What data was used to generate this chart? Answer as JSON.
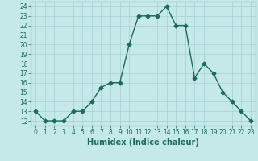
{
  "x": [
    0,
    1,
    2,
    3,
    4,
    5,
    6,
    7,
    8,
    9,
    10,
    11,
    12,
    13,
    14,
    15,
    16,
    17,
    18,
    19,
    20,
    21,
    22,
    23
  ],
  "y": [
    13,
    12,
    12,
    12,
    13,
    13,
    14,
    15.5,
    16,
    16,
    20,
    23,
    23,
    23,
    24,
    22,
    22,
    16.5,
    18,
    17,
    15,
    14,
    13,
    12
  ],
  "xlabel": "Humidex (Indice chaleur)",
  "line_color": "#1a6b5a",
  "marker": "D",
  "marker_size": 2.5,
  "background_color": "#c5e8e8",
  "grid_color": "#a8d0d0",
  "xlim": [
    -0.5,
    23.5
  ],
  "ylim": [
    11.5,
    24.5
  ],
  "yticks": [
    12,
    13,
    14,
    15,
    16,
    17,
    18,
    19,
    20,
    21,
    22,
    23,
    24
  ],
  "xticks": [
    0,
    1,
    2,
    3,
    4,
    5,
    6,
    7,
    8,
    9,
    10,
    11,
    12,
    13,
    14,
    15,
    16,
    17,
    18,
    19,
    20,
    21,
    22,
    23
  ],
  "tick_color": "#1a6b5a",
  "axis_color": "#1a6b5a",
  "xlabel_color": "#1a6b5a",
  "tick_fontsize": 5.5,
  "xlabel_fontsize": 7.0,
  "linewidth": 1.0
}
